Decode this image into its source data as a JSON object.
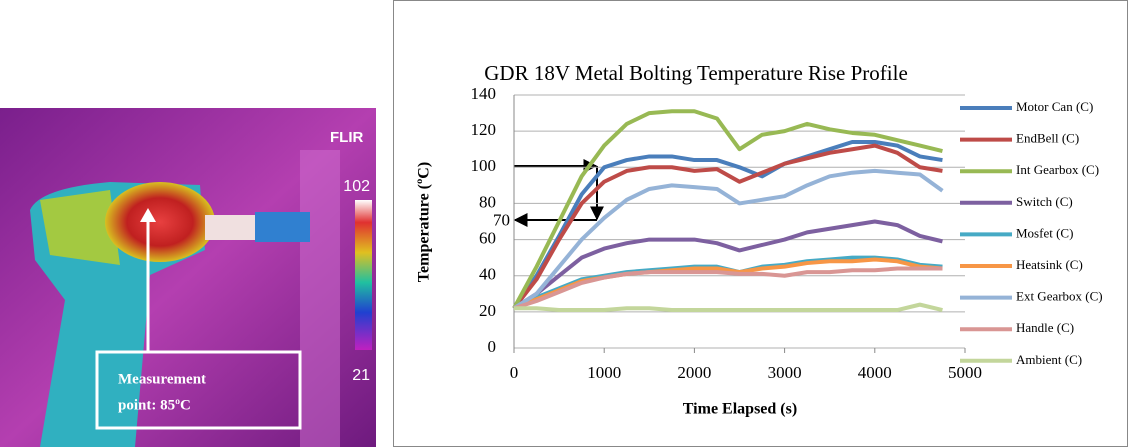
{
  "thermal_image": {
    "brand": "FLIR",
    "scale_max": "102",
    "scale_min": "21",
    "annotation": [
      "Measurement",
      "point: 85ºC"
    ]
  },
  "chart_data": {
    "type": "line",
    "title": "GDR 18V Metal Bolting Temperature Rise Profile",
    "x_label": "Time Elapsed (s)",
    "y_label": "Temperature (ºC)",
    "xlim": [
      0,
      5000
    ],
    "xticks": [
      0,
      1000,
      2000,
      3000,
      4000,
      5000
    ],
    "ylim": [
      0,
      140
    ],
    "yticks": [
      0,
      20,
      40,
      60,
      80,
      100,
      120,
      140
    ],
    "grid": true,
    "legend": "right",
    "annotations": [
      {
        "text": "70",
        "x": 0,
        "y": 70
      }
    ],
    "x": [
      0,
      250,
      500,
      750,
      1000,
      1250,
      1500,
      1750,
      2000,
      2250,
      2500,
      2750,
      3000,
      3250,
      3500,
      3750,
      4000,
      4250,
      4500,
      4750
    ],
    "series": [
      {
        "name": "Motor Can (C)",
        "color": "#4a7ebb",
        "values": [
          22,
          40,
          62,
          85,
          100,
          104,
          106,
          106,
          104,
          104,
          100,
          95,
          102,
          106,
          110,
          114,
          114,
          112,
          106,
          104
        ]
      },
      {
        "name": "EndBell (C)",
        "color": "#be4b48",
        "values": [
          22,
          38,
          60,
          80,
          92,
          98,
          100,
          100,
          98,
          99,
          92,
          97,
          102,
          105,
          108,
          110,
          112,
          108,
          100,
          98
        ]
      },
      {
        "name": "Int Gearbox (C)",
        "color": "#98b954",
        "values": [
          22,
          45,
          70,
          95,
          112,
          124,
          130,
          131,
          131,
          127,
          110,
          118,
          120,
          124,
          121,
          119,
          118,
          115,
          112,
          109
        ]
      },
      {
        "name": "Switch (C)",
        "color": "#7d60a0",
        "values": [
          22,
          30,
          40,
          50,
          55,
          58,
          60,
          60,
          60,
          58,
          54,
          57,
          60,
          64,
          66,
          68,
          70,
          68,
          62,
          59
        ]
      },
      {
        "name": "Mosfet (C)",
        "color": "#46aac5",
        "values": [
          22,
          28,
          33,
          38,
          40,
          42,
          43,
          44,
          45,
          45,
          42,
          45,
          46,
          48,
          49,
          50,
          50,
          49,
          46,
          45
        ]
      },
      {
        "name": "Heatsink (C)",
        "color": "#f79646",
        "values": [
          22,
          27,
          32,
          37,
          39,
          41,
          42,
          43,
          44,
          44,
          42,
          44,
          45,
          47,
          48,
          48,
          49,
          48,
          45,
          44
        ]
      },
      {
        "name": "Ext Gearbox (C)",
        "color": "#95b3d7",
        "values": [
          22,
          30,
          45,
          60,
          72,
          82,
          88,
          90,
          89,
          88,
          80,
          82,
          84,
          90,
          95,
          97,
          98,
          97,
          96,
          87
        ]
      },
      {
        "name": "Handle (C)",
        "color": "#d99694",
        "values": [
          22,
          26,
          31,
          36,
          39,
          41,
          42,
          42,
          42,
          42,
          41,
          41,
          40,
          42,
          42,
          43,
          43,
          44,
          44,
          44
        ]
      },
      {
        "name": "Ambient (C)",
        "color": "#c3d69b",
        "values": [
          22,
          22,
          21,
          21,
          21,
          22,
          22,
          21,
          21,
          21,
          21,
          21,
          21,
          21,
          21,
          21,
          21,
          21,
          24,
          21
        ]
      }
    ]
  }
}
